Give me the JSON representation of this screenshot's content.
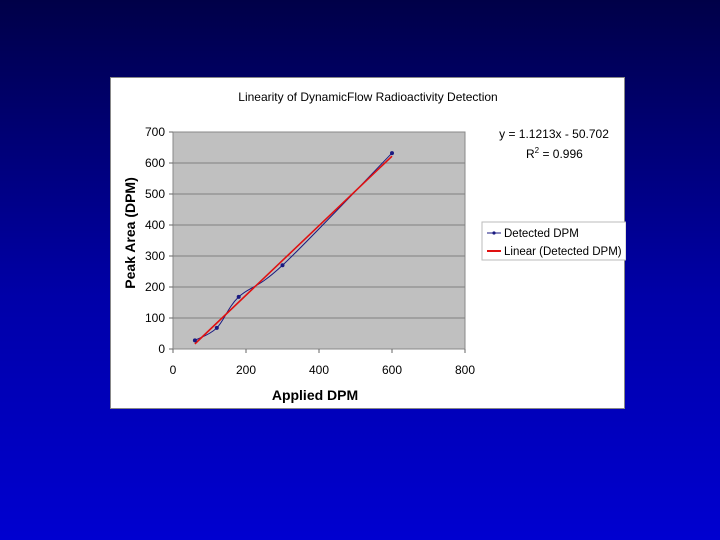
{
  "chart_data": {
    "type": "scatter",
    "title": "Linearity of DynamicFlow Radioactivity Detection",
    "xlabel": "Applied DPM",
    "ylabel": "Peak Area (DPM)",
    "xlim": [
      0,
      800
    ],
    "ylim": [
      0,
      700
    ],
    "xticks": [
      0,
      200,
      400,
      600,
      800
    ],
    "yticks": [
      0,
      100,
      200,
      300,
      400,
      500,
      600,
      700
    ],
    "grid": true,
    "legend_placement": "right",
    "series": [
      {
        "name": "Detected DPM",
        "x": [
          60,
          120,
          180,
          300,
          600
        ],
        "y": [
          28,
          68,
          168,
          270,
          632
        ],
        "color": "#1a1a80",
        "mode": "smoothed line with markers"
      },
      {
        "name": "Linear (Detected DPM)",
        "type": "linear trendline",
        "slope": 1.1213,
        "intercept": -50.702,
        "x_range": [
          60,
          600
        ],
        "color": "#e01010"
      }
    ],
    "annotation": {
      "equation": "y = 1.1213x - 50.702",
      "r2_prefix": "R",
      "r2_sup": "2",
      "r2_value": " = 0.996"
    },
    "plot_background": "#c0c0c0"
  }
}
